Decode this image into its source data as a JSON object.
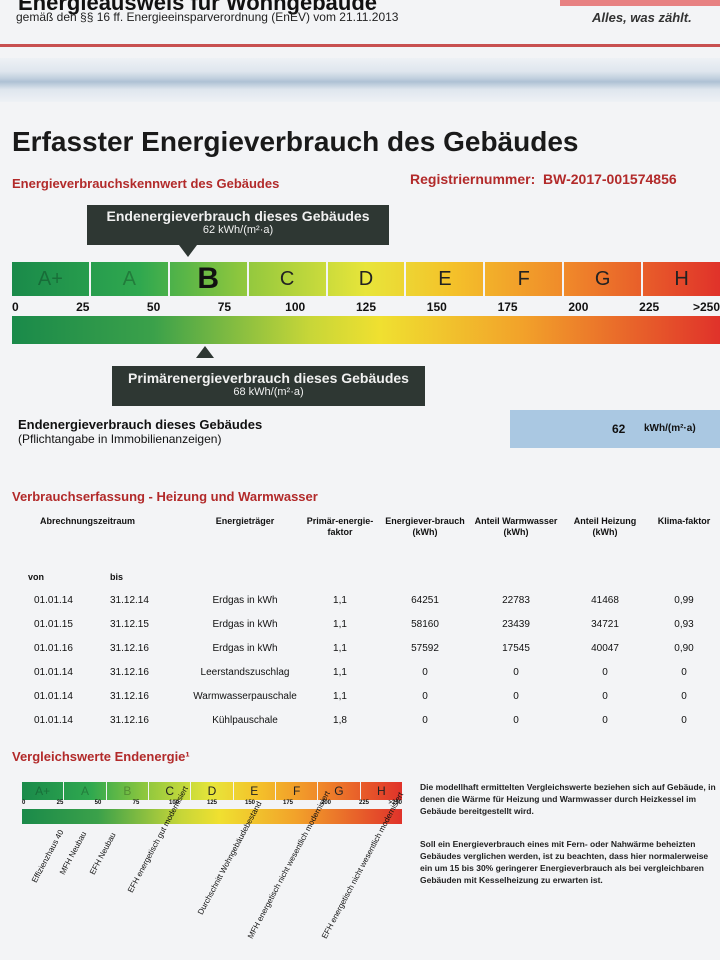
{
  "header": {
    "title": "Energieausweis für Wohngebäude",
    "subtitle": "gemäß den §§ 16 ff. Energieeinsparverordnung (EnEV) vom 21.11.2013",
    "slogan": "Alles, was zählt."
  },
  "section_title": "Erfasster Energieverbrauch des Gebäudes",
  "kennwert_label": "Energieverbrauchskennwert des Gebäudes",
  "registration": {
    "label": "Registriernummer:",
    "value": "BW-2017-001574856"
  },
  "end_energy_callout": {
    "title": "Endenergieverbrauch dieses Gebäudes",
    "value": "62 kWh/(m²·a)"
  },
  "primary_energy_callout": {
    "title": "Primärenergieverbrauch dieses Gebäudes",
    "value": "68 kWh/(m²·a)"
  },
  "scale": {
    "classes": [
      "A+",
      "A",
      "B",
      "C",
      "D",
      "E",
      "F",
      "G",
      "H"
    ],
    "ticks": [
      "0",
      "25",
      "50",
      "75",
      "100",
      "125",
      "150",
      "175",
      "200",
      "225",
      ">250"
    ],
    "end_energy_value": 62,
    "primary_energy_value": 68
  },
  "pflichtangabe": {
    "label": "Endenergieverbrauch dieses Gebäudes",
    "note": "(Pflichtangabe in Immobilienanzeigen)",
    "value": "62",
    "unit": "kWh/(m²·a)"
  },
  "consumption": {
    "title": "Verbrauchserfassung - Heizung und Warmwasser",
    "headers": {
      "period": "Abrechnungszeitraum",
      "from": "von",
      "to": "bis",
      "carrier": "Energieträger",
      "factor": "Primär-energie-faktor",
      "consumption": "Energiever-brauch (kWh)",
      "water": "Anteil Warmwasser (kWh)",
      "heating": "Anteil Heizung (kWh)",
      "climate": "Klima-faktor"
    },
    "rows": [
      [
        "01.01.14",
        "31.12.14",
        "Erdgas in kWh",
        "1,1",
        "64251",
        "22783",
        "41468",
        "0,99"
      ],
      [
        "01.01.15",
        "31.12.15",
        "Erdgas in kWh",
        "1,1",
        "58160",
        "23439",
        "34721",
        "0,93"
      ],
      [
        "01.01.16",
        "31.12.16",
        "Erdgas in kWh",
        "1,1",
        "57592",
        "17545",
        "40047",
        "0,90"
      ],
      [
        "01.01.14",
        "31.12.16",
        "Leerstandszuschlag",
        "1,1",
        "0",
        "0",
        "0",
        "0"
      ],
      [
        "01.01.14",
        "31.12.16",
        "Warmwasserpauschale",
        "1,1",
        "0",
        "0",
        "0",
        "0"
      ],
      [
        "01.01.14",
        "31.12.16",
        "Kühlpauschale",
        "1,8",
        "0",
        "0",
        "0",
        "0"
      ]
    ]
  },
  "comparison": {
    "title": "Vergleichswerte Endenergie¹",
    "labels": [
      "Effizienzhaus 40",
      "MFH Neubau",
      "EFH Neubau",
      "EFH energetisch gut modernisiert",
      "Durchschnitt Wohngebäudebestand",
      "MFH energetisch nicht wesentlich modernisiert",
      "EFH energetisch nicht wesentlich modernisiert"
    ],
    "note1": "Die modellhaft ermittelten Vergleichswerte beziehen sich auf Gebäude, in denen die Wärme für Heizung und Warmwasser durch Heizkessel im Gebäude bereitgestellt wird.",
    "note2": "Soll ein Energieverbrauch eines mit Fern- oder Nahwärme beheizten Gebäudes verglichen werden, ist zu beachten, dass hier normalerweise ein um 15 bis 30% geringerer Energieverbrauch als bei vergleichbaren Gebäuden mit Kesselheizung zu erwarten ist."
  }
}
